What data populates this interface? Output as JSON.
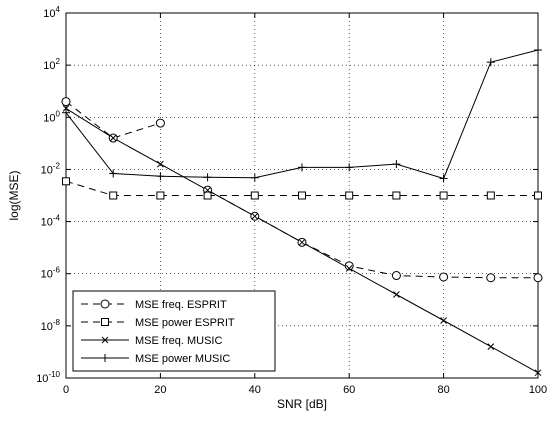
{
  "chart_data": {
    "type": "line",
    "title": "",
    "xlabel": "SNR [dB]",
    "ylabel": "log(MSE)",
    "xlim": [
      0,
      100
    ],
    "ylim_exp": [
      -10,
      4
    ],
    "yscale": "log",
    "grid": true,
    "legend_position": "bottom-left",
    "x_ticks": [
      0,
      20,
      40,
      60,
      80,
      100
    ],
    "y_tick_exponents": [
      -10,
      -8,
      -6,
      -4,
      -2,
      0,
      2,
      4
    ],
    "y_tick_base": "10",
    "series": [
      {
        "name": "MSE freq. ESPRIT",
        "line": "dashed",
        "marker": "circle",
        "x": [
          0,
          10,
          20
        ],
        "y": [
          4.0,
          0.16,
          0.6
        ],
        "segments": [
          {
            "x": [
              0,
              10,
              20
            ],
            "y": [
              4.0,
              0.16,
              0.6
            ]
          },
          {
            "x": [
              30,
              40,
              50,
              60,
              70,
              80,
              90,
              100
            ],
            "y": [
              0.0016,
              0.00016,
              1.6e-05,
              2e-06,
              8.5e-07,
              7.5e-07,
              7e-07,
              7e-07
            ]
          }
        ]
      },
      {
        "name": "MSE power ESPRIT",
        "line": "dashed",
        "marker": "square",
        "x": [
          0,
          10,
          20,
          30,
          40,
          50,
          60,
          70,
          80,
          90,
          100
        ],
        "y": [
          0.0035,
          0.001,
          0.001,
          0.001,
          0.001,
          0.001,
          0.001,
          0.001,
          0.001,
          0.001,
          0.001
        ]
      },
      {
        "name": "MSE freq. MUSIC",
        "line": "solid",
        "marker": "x",
        "x": [
          0,
          10,
          20,
          30,
          40,
          50,
          60,
          70,
          80,
          90,
          100
        ],
        "y": [
          2.2,
          0.16,
          0.016,
          0.0016,
          0.00016,
          1.6e-05,
          1.6e-06,
          1.6e-07,
          1.6e-08,
          1.6e-09,
          1.6e-10
        ]
      },
      {
        "name": "MSE power MUSIC",
        "line": "solid",
        "marker": "plus",
        "x": [
          0,
          10,
          20,
          30,
          40,
          50,
          60,
          70,
          80,
          90,
          100
        ],
        "y": [
          1.5,
          0.007,
          0.0055,
          0.005,
          0.0048,
          0.012,
          0.012,
          0.016,
          0.0045,
          130,
          380
        ]
      }
    ]
  }
}
